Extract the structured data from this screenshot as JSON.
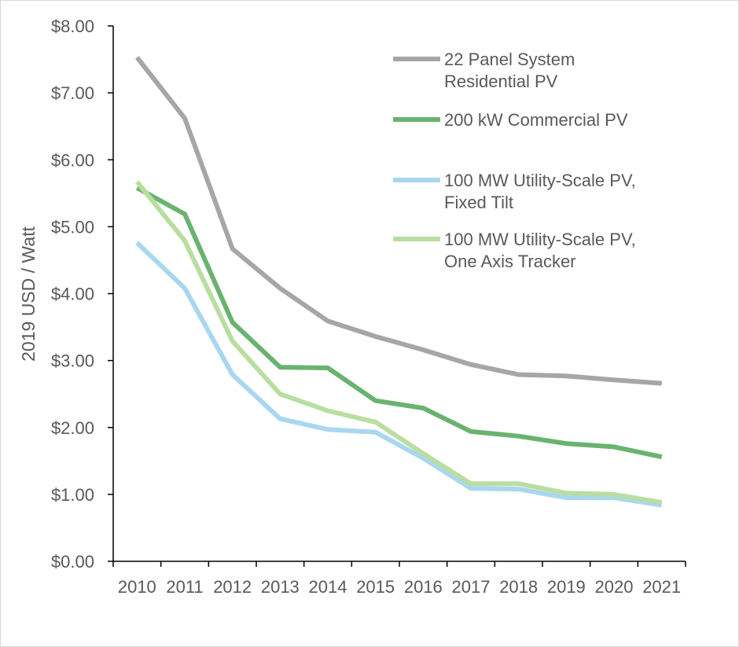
{
  "chart_data": {
    "type": "line",
    "title": "",
    "xlabel": "",
    "ylabel": "2019 USD / Watt",
    "ylim": [
      0,
      8
    ],
    "y_ticks": [
      "$0.00",
      "$1.00",
      "$2.00",
      "$3.00",
      "$4.00",
      "$5.00",
      "$6.00",
      "$7.00",
      "$8.00"
    ],
    "categories": [
      "2010",
      "2011",
      "2012",
      "2013",
      "2014",
      "2015",
      "2016",
      "2017",
      "2018",
      "2019",
      "2020",
      "2021"
    ],
    "grid": false,
    "legend_position": "top-right",
    "series": [
      {
        "name_lines": [
          "22 Panel System",
          "Residential PV"
        ],
        "color": "#a6a6a6",
        "values": [
          7.53,
          6.62,
          4.67,
          4.08,
          3.59,
          3.36,
          3.16,
          2.94,
          2.79,
          2.77,
          2.71,
          2.66
        ]
      },
      {
        "name_lines": [
          "200 kW Commercial PV"
        ],
        "color": "#6ab36f",
        "values": [
          5.58,
          5.19,
          3.57,
          2.9,
          2.89,
          2.4,
          2.29,
          1.94,
          1.87,
          1.76,
          1.71,
          1.56
        ]
      },
      {
        "name_lines": [
          "100 MW Utility-Scale PV,",
          "Fixed Tilt"
        ],
        "color": "#a9d7ef",
        "values": [
          4.76,
          4.08,
          2.79,
          2.13,
          1.97,
          1.93,
          1.54,
          1.09,
          1.08,
          0.95,
          0.95,
          0.84
        ]
      },
      {
        "name_lines": [
          "100 MW Utility-Scale PV,",
          "One Axis Tracker"
        ],
        "color": "#b9dea1",
        "values": [
          5.67,
          4.79,
          3.29,
          2.5,
          2.25,
          2.08,
          1.61,
          1.16,
          1.16,
          1.02,
          1.0,
          0.88
        ]
      }
    ]
  }
}
